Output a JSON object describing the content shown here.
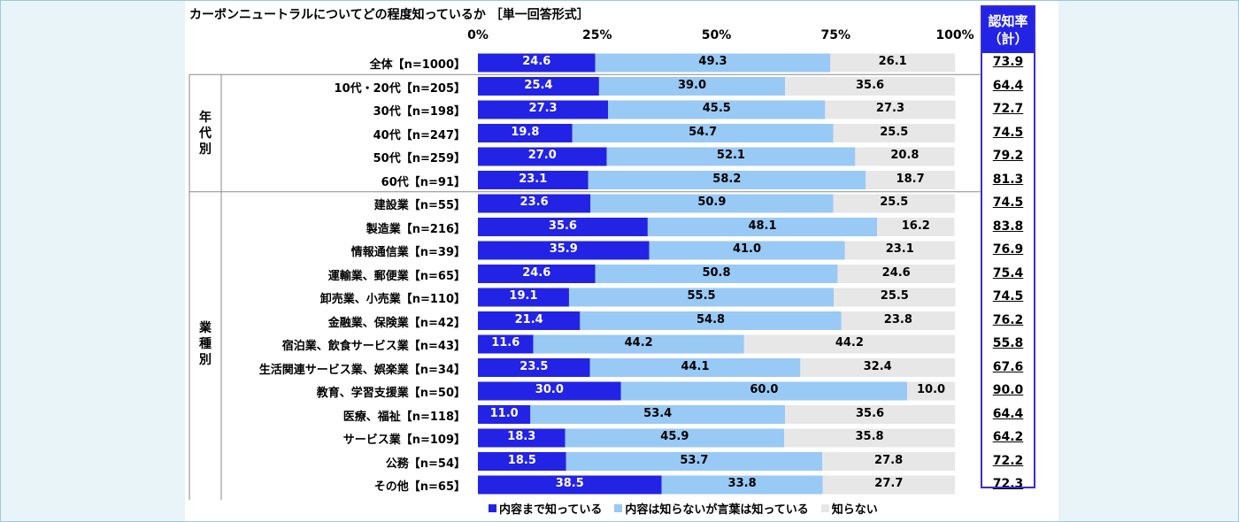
{
  "chart_data": {
    "type": "bar",
    "orientation": "horizontal",
    "stacked": true,
    "title": "カーボンニュートラルについてどの程度知っているか ［単一回答形式］",
    "xlim": [
      0,
      100
    ],
    "ticks": [
      "0%",
      "25%",
      "50%",
      "75%",
      "100%"
    ],
    "recognition_header": [
      "認知率",
      "（計）"
    ],
    "groups": [
      {
        "label": "年代別",
        "start": 1,
        "end": 5
      },
      {
        "label": "業種別",
        "start": 6,
        "end": 18
      }
    ],
    "categories": [
      "全体【n=1000】",
      "10代・20代【n=205】",
      "30代【n=198】",
      "40代【n=247】",
      "50代【n=259】",
      "60代【n=91】",
      "建設業【n=55】",
      "製造業【n=216】",
      "情報通信業【n=39】",
      "運輸業、郵便業【n=65】",
      "卸売業、小売業【n=110】",
      "金融業、保険業【n=42】",
      "宿泊業、飲食サービス業【n=43】",
      "生活関連サービス業、娯楽業【n=34】",
      "教育、学習支援業【n=50】",
      "医療、福祉【n=118】",
      "サービス業【n=109】",
      "公務【n=54】",
      "その他【n=65】"
    ],
    "series": [
      {
        "name": "内容まで知っている",
        "color": "#2323e6",
        "values": [
          24.6,
          25.4,
          27.3,
          19.8,
          27.0,
          23.1,
          23.6,
          35.6,
          35.9,
          24.6,
          19.1,
          21.4,
          11.6,
          23.5,
          30.0,
          11.0,
          18.3,
          18.5,
          38.5
        ]
      },
      {
        "name": "内容は知らないが言葉は知っている",
        "color": "#99c9f5",
        "values": [
          49.3,
          39.0,
          45.5,
          54.7,
          52.1,
          58.2,
          50.9,
          48.1,
          41.0,
          50.8,
          55.5,
          54.8,
          44.2,
          44.1,
          60.0,
          53.4,
          45.9,
          53.7,
          33.8
        ]
      },
      {
        "name": "知らない",
        "color": "#e7e7e7",
        "values": [
          26.1,
          35.6,
          27.3,
          25.5,
          20.8,
          18.7,
          25.5,
          16.2,
          23.1,
          24.6,
          25.5,
          23.8,
          44.2,
          32.4,
          10.0,
          35.6,
          35.8,
          27.8,
          27.7
        ]
      }
    ],
    "recognition": [
      "73.9",
      "64.4",
      "72.7",
      "74.5",
      "79.2",
      "81.3",
      "74.5",
      "83.8",
      "76.9",
      "75.4",
      "74.5",
      "76.2",
      "55.8",
      "67.6",
      "90.0",
      "64.4",
      "64.2",
      "72.2",
      "72.3"
    ],
    "legend_position": "bottom"
  }
}
